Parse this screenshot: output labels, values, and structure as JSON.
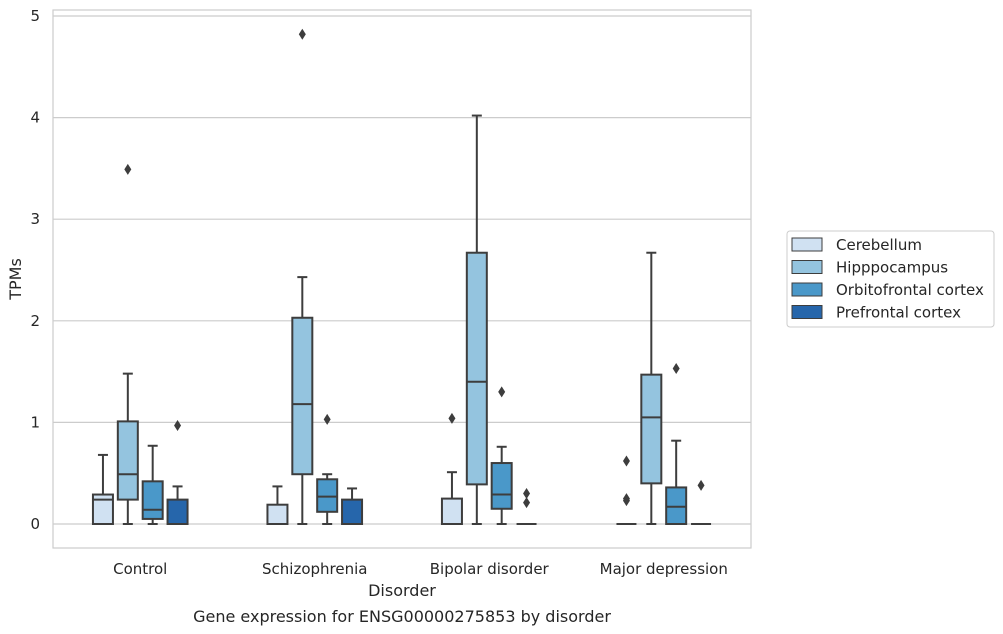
{
  "chart_data": {
    "type": "box",
    "xlabel": "Disorder",
    "ylabel": "TPMs",
    "caption": "Gene expression for ENSG00000275853 by disorder",
    "ylim": [
      -0.24,
      5.08
    ],
    "yticks": [
      "0",
      "1",
      "2",
      "3",
      "4",
      "5"
    ],
    "grid": true,
    "legend_position": "right",
    "categories": [
      "Control",
      "Schizophrenia",
      "Bipolar disorder",
      "Major depression"
    ],
    "series": [
      {
        "name": "Cerebellum",
        "color": "#d0e1f2",
        "boxes": [
          {
            "q1": 0.0,
            "median": 0.24,
            "q3": 0.29,
            "whisker_low": 0.0,
            "whisker_high": 0.68,
            "outliers": []
          },
          {
            "q1": 0.0,
            "median": 0.0,
            "q3": 0.19,
            "whisker_low": 0.0,
            "whisker_high": 0.37,
            "outliers": []
          },
          {
            "q1": 0.0,
            "median": 0.0,
            "q3": 0.25,
            "whisker_low": 0.0,
            "whisker_high": 0.51,
            "outliers": [
              1.04
            ]
          },
          {
            "q1": 0.0,
            "median": 0.0,
            "q3": 0.0,
            "whisker_low": 0.0,
            "whisker_high": 0.0,
            "outliers": [
              0.62,
              0.25,
              0.23
            ]
          }
        ]
      },
      {
        "name": "Hipppocampus",
        "color": "#94c4df",
        "boxes": [
          {
            "q1": 0.24,
            "median": 0.49,
            "q3": 1.01,
            "whisker_low": 0.0,
            "whisker_high": 1.48,
            "outliers": [
              3.49
            ]
          },
          {
            "q1": 0.49,
            "median": 1.18,
            "q3": 2.03,
            "whisker_low": 0.0,
            "whisker_high": 2.43,
            "outliers": [
              4.82
            ]
          },
          {
            "q1": 0.39,
            "median": 1.4,
            "q3": 2.67,
            "whisker_low": 0.0,
            "whisker_high": 4.02,
            "outliers": []
          },
          {
            "q1": 0.4,
            "median": 1.05,
            "q3": 1.47,
            "whisker_low": 0.0,
            "whisker_high": 2.67,
            "outliers": []
          }
        ]
      },
      {
        "name": "Orbitofrontal cortex",
        "color": "#4a98c9",
        "boxes": [
          {
            "q1": 0.05,
            "median": 0.14,
            "q3": 0.42,
            "whisker_low": 0.0,
            "whisker_high": 0.77,
            "outliers": []
          },
          {
            "q1": 0.12,
            "median": 0.27,
            "q3": 0.44,
            "whisker_low": 0.0,
            "whisker_high": 0.49,
            "outliers": [
              1.03
            ]
          },
          {
            "q1": 0.15,
            "median": 0.29,
            "q3": 0.6,
            "whisker_low": 0.0,
            "whisker_high": 0.76,
            "outliers": [
              1.3
            ]
          },
          {
            "q1": 0.0,
            "median": 0.17,
            "q3": 0.36,
            "whisker_low": 0.0,
            "whisker_high": 0.82,
            "outliers": [
              1.53
            ]
          }
        ]
      },
      {
        "name": "Prefrontal cortex",
        "color": "#2666ab",
        "boxes": [
          {
            "q1": 0.0,
            "median": 0.0,
            "q3": 0.24,
            "whisker_low": 0.0,
            "whisker_high": 0.37,
            "outliers": [
              0.97
            ]
          },
          {
            "q1": 0.0,
            "median": 0.0,
            "q3": 0.24,
            "whisker_low": 0.0,
            "whisker_high": 0.35,
            "outliers": []
          },
          {
            "q1": 0.0,
            "median": 0.0,
            "q3": 0.0,
            "whisker_low": 0.0,
            "whisker_high": 0.0,
            "outliers": [
              0.3,
              0.21
            ]
          },
          {
            "q1": 0.0,
            "median": 0.0,
            "q3": 0.0,
            "whisker_low": 0.0,
            "whisker_high": 0.0,
            "outliers": [
              0.38
            ]
          }
        ]
      }
    ]
  }
}
